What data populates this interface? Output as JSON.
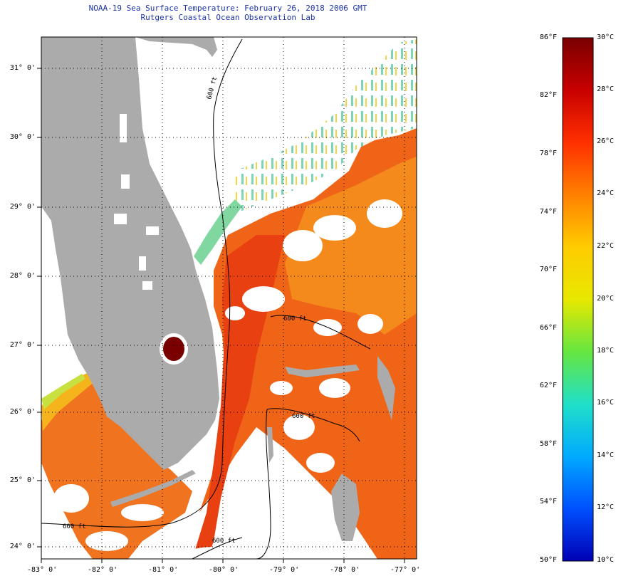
{
  "header": {
    "title": "NOAA-19 Sea Surface Temperature:  February 26, 2018 2006 GMT",
    "subtitle": "Rutgers Coastal Ocean Observation Lab"
  },
  "map": {
    "lat_labels": [
      "31° 0'",
      "30° 0'",
      "29° 0'",
      "28° 0'",
      "27° 0'",
      "26° 0'",
      "25° 0'",
      "24° 0'"
    ],
    "lon_labels": [
      "-83° 0'",
      "-82° 0'",
      "-81° 0'",
      "-80° 0'",
      "-79° 0'",
      "-78° 0'",
      "-77° 0'"
    ],
    "contour_labels": [
      "600 ft",
      "600 ft",
      "600 ft",
      "600 ft",
      "600 ft"
    ],
    "colors": {
      "land": "#ababab",
      "cloud": "#ffffff",
      "warm_water": "#f06418",
      "grid": "#000000"
    }
  },
  "colorbar": {
    "fahrenheit_labels": [
      "86°F",
      "82°F",
      "78°F",
      "74°F",
      "70°F",
      "66°F",
      "62°F",
      "58°F",
      "54°F",
      "50°F"
    ],
    "celsius_labels": [
      "30°C",
      "28°C",
      "26°C",
      "24°C",
      "22°C",
      "20°C",
      "18°C",
      "16°C",
      "14°C",
      "12°C",
      "10°C"
    ],
    "colors": [
      "#7a0000",
      "#c80000",
      "#ff3000",
      "#ff8000",
      "#ffcc00",
      "#e8e800",
      "#66e640",
      "#20e0c8",
      "#00aaff",
      "#0050ff",
      "#0000b4"
    ]
  }
}
